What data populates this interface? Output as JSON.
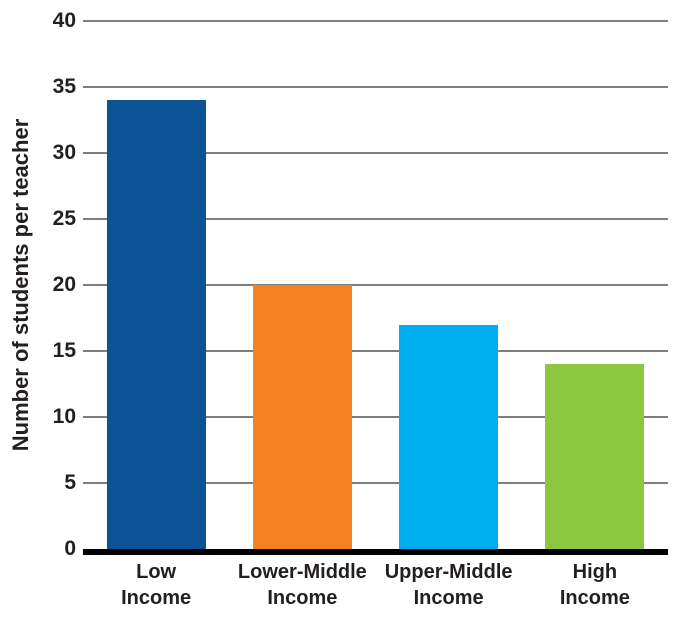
{
  "chart_data": {
    "type": "bar",
    "categories": [
      "Low\nIncome",
      "Lower-Middle\nIncome",
      "Upper-Middle\nIncome",
      "High\nIncome"
    ],
    "values": [
      34,
      20,
      17,
      14
    ],
    "bar_colors": [
      "#0b5394",
      "#f58220",
      "#00aeef",
      "#8dc63f"
    ],
    "title": "",
    "xlabel": "",
    "ylabel": "Number of students per teacher",
    "ylim": [
      0,
      40
    ],
    "yticks": [
      0,
      5,
      10,
      15,
      20,
      25,
      30,
      35,
      40
    ],
    "grid": "horizontal",
    "gridline_color": "#7e7e7e",
    "axis_line_color": "#000000",
    "text_color": "#231f20",
    "legend": "none"
  }
}
